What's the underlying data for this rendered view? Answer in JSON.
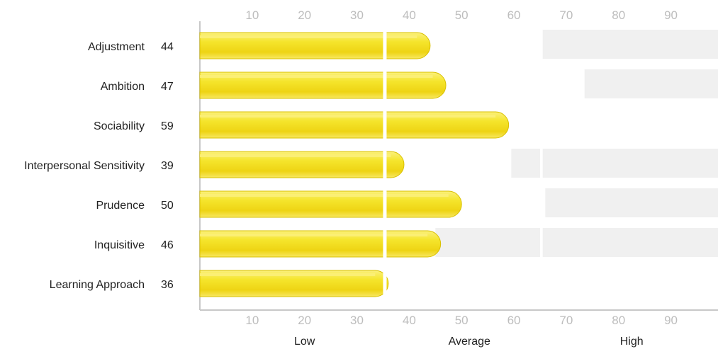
{
  "chart_data": {
    "type": "bar",
    "orientation": "horizontal",
    "xlim": [
      0,
      99
    ],
    "ticks": [
      10,
      20,
      30,
      40,
      50,
      60,
      70,
      80,
      90
    ],
    "categories": [
      "Adjustment",
      "Ambition",
      "Sociability",
      "Interpersonal Sensitivity",
      "Prudence",
      "Inquisitive",
      "Learning Approach"
    ],
    "values": [
      44,
      47,
      59,
      39,
      50,
      46,
      36
    ],
    "value_labels": [
      "44",
      "47",
      "59",
      "39",
      "50",
      "46",
      "36"
    ],
    "tick_labels": [
      "10",
      "20",
      "30",
      "40",
      "50",
      "60",
      "70",
      "80",
      "90"
    ],
    "bands": [
      {
        "label": "Low",
        "center": 20
      },
      {
        "label": "Average",
        "center": 51.5
      },
      {
        "label": "High",
        "center": 82.5
      }
    ],
    "background_shading": [
      [
        [
          65.5,
          99
        ]
      ],
      [
        [
          73.5,
          99
        ]
      ],
      [],
      [
        [
          59.5,
          65
        ],
        [
          65.5,
          99
        ]
      ],
      [
        [
          66,
          99
        ]
      ],
      [
        [
          45,
          65
        ],
        [
          65.5,
          99
        ]
      ],
      []
    ],
    "bar_divider": 35,
    "colors": {
      "bar": "#f2dc1e",
      "bar_highlight": "#fbf07c",
      "bar_stroke": "#d9c000",
      "shading": "#f0f0f0",
      "axis": "#c8c8c8"
    }
  }
}
